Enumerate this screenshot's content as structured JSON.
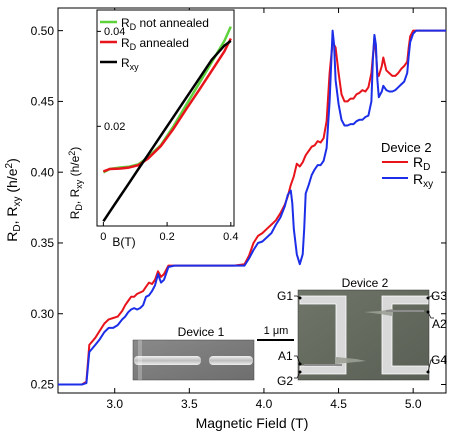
{
  "chart_data": [
    {
      "type": "line",
      "role": "main",
      "xlabel": "Magnetic Field (T)",
      "ylabel_parts": [
        "R",
        "D",
        ", R",
        "xy",
        " (h/e",
        "2",
        ")"
      ],
      "xlim": [
        2.62,
        5.22
      ],
      "ylim": [
        0.244,
        0.516
      ],
      "xticks": [
        3.0,
        3.5,
        4.0,
        4.5,
        5.0
      ],
      "xtick_labels": [
        "3.0",
        "3.5",
        "4.0",
        "4.5",
        "5.0"
      ],
      "yticks": [
        0.25,
        0.3,
        0.35,
        0.4,
        0.45,
        0.5
      ],
      "ytick_labels": [
        "0.25",
        "0.30",
        "0.35",
        "0.40",
        "0.45",
        "0.50"
      ],
      "legend_title": "Device 2",
      "legend_position": "right",
      "series": [
        {
          "label_main": "R",
          "label_sub": "D",
          "color": "#e8141c",
          "points": [
            [
              2.62,
              0.25
            ],
            [
              2.78,
              0.25
            ],
            [
              2.81,
              0.252
            ],
            [
              2.83,
              0.278
            ],
            [
              2.87,
              0.283
            ],
            [
              2.9,
              0.288
            ],
            [
              2.93,
              0.293
            ],
            [
              2.96,
              0.296
            ],
            [
              2.99,
              0.297
            ],
            [
              3.02,
              0.298
            ],
            [
              3.05,
              0.302
            ],
            [
              3.07,
              0.306
            ],
            [
              3.09,
              0.309
            ],
            [
              3.11,
              0.312
            ],
            [
              3.13,
              0.312
            ],
            [
              3.15,
              0.314
            ],
            [
              3.17,
              0.315
            ],
            [
              3.19,
              0.316
            ],
            [
              3.21,
              0.319
            ],
            [
              3.23,
              0.322
            ],
            [
              3.25,
              0.321
            ],
            [
              3.27,
              0.324
            ],
            [
              3.29,
              0.33
            ],
            [
              3.31,
              0.326
            ],
            [
              3.33,
              0.328
            ],
            [
              3.36,
              0.334
            ],
            [
              3.4,
              0.334
            ],
            [
              3.5,
              0.334
            ],
            [
              3.6,
              0.334
            ],
            [
              3.7,
              0.334
            ],
            [
              3.8,
              0.334
            ],
            [
              3.87,
              0.335
            ],
            [
              3.9,
              0.341
            ],
            [
              3.93,
              0.35
            ],
            [
              3.96,
              0.355
            ],
            [
              3.99,
              0.357
            ],
            [
              4.02,
              0.36
            ],
            [
              4.05,
              0.363
            ],
            [
              4.08,
              0.366
            ],
            [
              4.11,
              0.371
            ],
            [
              4.14,
              0.377
            ],
            [
              4.16,
              0.383
            ],
            [
              4.18,
              0.391
            ],
            [
              4.2,
              0.397
            ],
            [
              4.22,
              0.406
            ],
            [
              4.24,
              0.404
            ],
            [
              4.26,
              0.407
            ],
            [
              4.28,
              0.412
            ],
            [
              4.3,
              0.415
            ],
            [
              4.32,
              0.418
            ],
            [
              4.34,
              0.419
            ],
            [
              4.36,
              0.422
            ],
            [
              4.38,
              0.421
            ],
            [
              4.4,
              0.424
            ],
            [
              4.42,
              0.436
            ],
            [
              4.44,
              0.47
            ],
            [
              4.46,
              0.492
            ],
            [
              4.48,
              0.488
            ],
            [
              4.5,
              0.47
            ],
            [
              4.52,
              0.455
            ],
            [
              4.54,
              0.45
            ],
            [
              4.56,
              0.45
            ],
            [
              4.58,
              0.452
            ],
            [
              4.6,
              0.452
            ],
            [
              4.62,
              0.455
            ],
            [
              4.64,
              0.456
            ],
            [
              4.66,
              0.458
            ],
            [
              4.68,
              0.457
            ],
            [
              4.7,
              0.46
            ],
            [
              4.72,
              0.47
            ],
            [
              4.74,
              0.494
            ],
            [
              4.75,
              0.485
            ],
            [
              4.76,
              0.47
            ],
            [
              4.77,
              0.468
            ],
            [
              4.79,
              0.475
            ],
            [
              4.8,
              0.481
            ],
            [
              4.82,
              0.472
            ],
            [
              4.84,
              0.47
            ],
            [
              4.86,
              0.468
            ],
            [
              4.88,
              0.468
            ],
            [
              4.9,
              0.47
            ],
            [
              4.92,
              0.473
            ],
            [
              4.94,
              0.475
            ],
            [
              4.96,
              0.478
            ],
            [
              4.97,
              0.488
            ],
            [
              4.98,
              0.496
            ],
            [
              5.0,
              0.5
            ],
            [
              5.1,
              0.5
            ],
            [
              5.22,
              0.5
            ]
          ]
        },
        {
          "label_main": "R",
          "label_sub": "xy",
          "color": "#1c2ee8",
          "points": [
            [
              2.62,
              0.25
            ],
            [
              2.78,
              0.25
            ],
            [
              2.81,
              0.251
            ],
            [
              2.83,
              0.273
            ],
            [
              2.87,
              0.278
            ],
            [
              2.9,
              0.282
            ],
            [
              2.93,
              0.287
            ],
            [
              2.96,
              0.29
            ],
            [
              2.99,
              0.29
            ],
            [
              3.02,
              0.292
            ],
            [
              3.05,
              0.296
            ],
            [
              3.07,
              0.298
            ],
            [
              3.09,
              0.301
            ],
            [
              3.11,
              0.303
            ],
            [
              3.13,
              0.304
            ],
            [
              3.15,
              0.303
            ],
            [
              3.17,
              0.304
            ],
            [
              3.19,
              0.306
            ],
            [
              3.21,
              0.312
            ],
            [
              3.23,
              0.313
            ],
            [
              3.25,
              0.316
            ],
            [
              3.27,
              0.32
            ],
            [
              3.29,
              0.328
            ],
            [
              3.31,
              0.322
            ],
            [
              3.33,
              0.324
            ],
            [
              3.36,
              0.333
            ],
            [
              3.4,
              0.334
            ],
            [
              3.5,
              0.334
            ],
            [
              3.6,
              0.334
            ],
            [
              3.7,
              0.334
            ],
            [
              3.8,
              0.334
            ],
            [
              3.87,
              0.334
            ],
            [
              3.9,
              0.339
            ],
            [
              3.93,
              0.345
            ],
            [
              3.96,
              0.35
            ],
            [
              3.99,
              0.351
            ],
            [
              4.02,
              0.354
            ],
            [
              4.05,
              0.357
            ],
            [
              4.08,
              0.363
            ],
            [
              4.11,
              0.368
            ],
            [
              4.14,
              0.376
            ],
            [
              4.16,
              0.384
            ],
            [
              4.18,
              0.387
            ],
            [
              4.19,
              0.378
            ],
            [
              4.2,
              0.36
            ],
            [
              4.22,
              0.342
            ],
            [
              4.24,
              0.335
            ],
            [
              4.26,
              0.342
            ],
            [
              4.27,
              0.36
            ],
            [
              4.28,
              0.385
            ],
            [
              4.3,
              0.391
            ],
            [
              4.32,
              0.398
            ],
            [
              4.34,
              0.402
            ],
            [
              4.36,
              0.405
            ],
            [
              4.38,
              0.405
            ],
            [
              4.4,
              0.408
            ],
            [
              4.42,
              0.417
            ],
            [
              4.44,
              0.45
            ],
            [
              4.46,
              0.5
            ],
            [
              4.47,
              0.49
            ],
            [
              4.48,
              0.465
            ],
            [
              4.5,
              0.448
            ],
            [
              4.52,
              0.437
            ],
            [
              4.54,
              0.433
            ],
            [
              4.56,
              0.433
            ],
            [
              4.58,
              0.434
            ],
            [
              4.6,
              0.434
            ],
            [
              4.62,
              0.436
            ],
            [
              4.64,
              0.437
            ],
            [
              4.66,
              0.437
            ],
            [
              4.68,
              0.439
            ],
            [
              4.7,
              0.44
            ],
            [
              4.72,
              0.45
            ],
            [
              4.73,
              0.48
            ],
            [
              4.74,
              0.497
            ],
            [
              4.75,
              0.49
            ],
            [
              4.76,
              0.465
            ],
            [
              4.77,
              0.453
            ],
            [
              4.79,
              0.457
            ],
            [
              4.8,
              0.461
            ],
            [
              4.82,
              0.458
            ],
            [
              4.84,
              0.457
            ],
            [
              4.86,
              0.457
            ],
            [
              4.88,
              0.458
            ],
            [
              4.9,
              0.46
            ],
            [
              4.92,
              0.462
            ],
            [
              4.94,
              0.464
            ],
            [
              4.96,
              0.47
            ],
            [
              4.97,
              0.482
            ],
            [
              4.98,
              0.492
            ],
            [
              5.0,
              0.498
            ],
            [
              5.02,
              0.5
            ],
            [
              5.1,
              0.5
            ],
            [
              5.22,
              0.5
            ]
          ]
        }
      ]
    },
    {
      "type": "line",
      "role": "inset",
      "xlabel": "B(T)",
      "ylabel_parts": [
        "R",
        "D",
        ", R",
        "xy",
        " (h/e",
        "2",
        ")"
      ],
      "xlim": [
        -0.02,
        0.41
      ],
      "ylim": [
        -0.001,
        0.0445
      ],
      "xticks": [
        0,
        0.2,
        0.4
      ],
      "xtick_labels": [
        "0",
        "0.2",
        "0.4"
      ],
      "yticks": [
        0.02,
        0.04
      ],
      "ytick_labels": [
        "0.02",
        "0.04"
      ],
      "legend_position": "top-left",
      "series": [
        {
          "label_main": "R",
          "label_sub": "D",
          "label_rest": " not annealed",
          "color": "#5ed13c",
          "points": [
            [
              0,
              0.0103
            ],
            [
              0.02,
              0.011
            ],
            [
              0.05,
              0.0113
            ],
            [
              0.08,
              0.0115
            ],
            [
              0.11,
              0.012
            ],
            [
              0.14,
              0.0135
            ],
            [
              0.18,
              0.016
            ],
            [
              0.22,
              0.02
            ],
            [
              0.26,
              0.0245
            ],
            [
              0.3,
              0.029
            ],
            [
              0.34,
              0.0335
            ],
            [
              0.38,
              0.038
            ],
            [
              0.4,
              0.041
            ]
          ]
        },
        {
          "label_main": "R",
          "label_sub": "D",
          "label_rest": " annealed",
          "color": "#e8141c",
          "points": [
            [
              0,
              0.0105
            ],
            [
              0.02,
              0.011
            ],
            [
              0.05,
              0.0111
            ],
            [
              0.08,
              0.0113
            ],
            [
              0.11,
              0.0118
            ],
            [
              0.14,
              0.0132
            ],
            [
              0.18,
              0.0158
            ],
            [
              0.22,
              0.0195
            ],
            [
              0.26,
              0.0236
            ],
            [
              0.3,
              0.0276
            ],
            [
              0.34,
              0.0317
            ],
            [
              0.38,
              0.0358
            ],
            [
              0.4,
              0.0385
            ]
          ]
        },
        {
          "label_main": "R",
          "label_sub": "xy",
          "label_rest": "",
          "color": "#000000",
          "points": [
            [
              0,
              0.0
            ],
            [
              0.02,
              0.002
            ],
            [
              0.05,
              0.005
            ],
            [
              0.08,
              0.008
            ],
            [
              0.11,
              0.011
            ],
            [
              0.14,
              0.014
            ],
            [
              0.18,
              0.018
            ],
            [
              0.22,
              0.022
            ],
            [
              0.26,
              0.026
            ],
            [
              0.3,
              0.03
            ],
            [
              0.34,
              0.034
            ],
            [
              0.38,
              0.037
            ],
            [
              0.4,
              0.038
            ]
          ]
        }
      ]
    }
  ],
  "micrographs": {
    "device1_label": "Device 1",
    "device2_label": "Device 2",
    "scale_label": "1 μm",
    "contacts": [
      "G1",
      "G2",
      "A1",
      "G3",
      "A2",
      "G4"
    ]
  }
}
